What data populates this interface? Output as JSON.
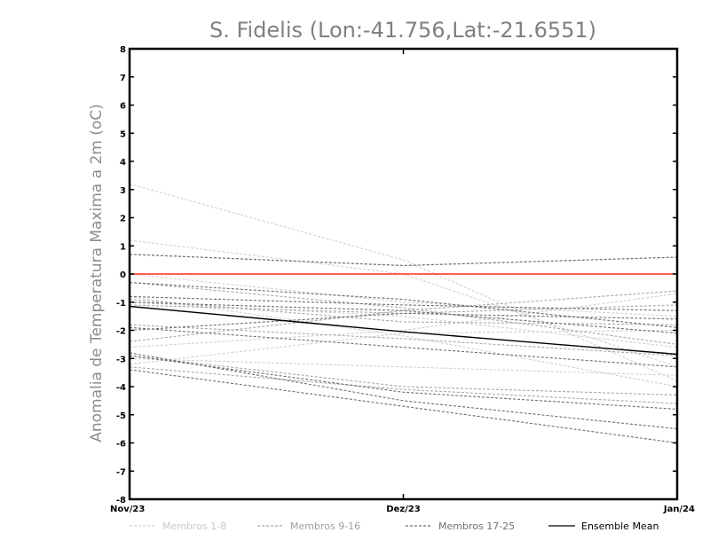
{
  "chart_data": {
    "type": "line",
    "title": "S. Fidelis (Lon:-41.756,Lat:-21.6551)",
    "xlabel": "",
    "ylabel": "Anomalia de Temperatura Maxima a 2m (oC)",
    "categories": [
      "Nov/23",
      "Dez/23",
      "Jan/24"
    ],
    "ylim": [
      -8,
      8
    ],
    "yticks": [
      "8",
      "7",
      "6",
      "5",
      "4",
      "3",
      "2",
      "1",
      "0",
      "-1",
      "-2",
      "-3",
      "-4",
      "-5",
      "-6",
      "-7",
      "-8"
    ],
    "grid": false,
    "legend_position": "bottom",
    "reference_line": {
      "value": 0,
      "color": "#ff2a1a"
    },
    "groups": [
      {
        "legend": "Membros 1-8",
        "color": "#d0d0d0",
        "dash": "3,2"
      },
      {
        "legend": "Membros 9-16",
        "color": "#a8a8a8",
        "dash": "3,2"
      },
      {
        "legend": "Membros 17-25",
        "color": "#6e6e6e",
        "dash": "3,2"
      },
      {
        "legend": "Ensemble Mean",
        "color": "#000000",
        "dash": ""
      }
    ],
    "series": [
      {
        "group": 0,
        "values": [
          3.2,
          0.5,
          -3.8
        ]
      },
      {
        "group": 0,
        "values": [
          1.2,
          0.0,
          -3.3
        ]
      },
      {
        "group": 0,
        "values": [
          0.0,
          -1.0,
          -1.5
        ]
      },
      {
        "group": 0,
        "values": [
          -2.6,
          -2.0,
          -0.7
        ]
      },
      {
        "group": 0,
        "values": [
          -3.0,
          -3.3,
          -3.6
        ]
      },
      {
        "group": 0,
        "values": [
          -3.2,
          -2.1,
          -2.0
        ]
      },
      {
        "group": 0,
        "values": [
          -1.0,
          -1.5,
          -2.6
        ]
      },
      {
        "group": 0,
        "values": [
          -0.8,
          -2.2,
          -4.0
        ]
      },
      {
        "group": 1,
        "values": [
          0.7,
          0.3,
          0.6
        ]
      },
      {
        "group": 1,
        "values": [
          -0.3,
          -1.2,
          -2.5
        ]
      },
      {
        "group": 1,
        "values": [
          -1.1,
          -1.4,
          -1.1
        ]
      },
      {
        "group": 1,
        "values": [
          -1.8,
          -2.3,
          -2.9
        ]
      },
      {
        "group": 1,
        "values": [
          -2.4,
          -1.3,
          -0.6
        ]
      },
      {
        "group": 1,
        "values": [
          -2.9,
          -4.0,
          -4.3
        ]
      },
      {
        "group": 1,
        "values": [
          -0.9,
          -1.7,
          -1.8
        ]
      },
      {
        "group": 1,
        "values": [
          -3.3,
          -4.1,
          -4.6
        ]
      },
      {
        "group": 2,
        "values": [
          0.7,
          0.3,
          0.6
        ]
      },
      {
        "group": 2,
        "values": [
          -0.3,
          -0.9,
          -1.9
        ]
      },
      {
        "group": 2,
        "values": [
          -0.8,
          -1.1,
          -1.3
        ]
      },
      {
        "group": 2,
        "values": [
          -1.0,
          -1.3,
          -2.1
        ]
      },
      {
        "group": 2,
        "values": [
          -2.0,
          -1.4,
          -1.6
        ]
      },
      {
        "group": 2,
        "values": [
          -1.9,
          -2.6,
          -3.3
        ]
      },
      {
        "group": 2,
        "values": [
          -2.8,
          -4.5,
          -5.5
        ]
      },
      {
        "group": 2,
        "values": [
          -3.4,
          -4.7,
          -6.0
        ]
      },
      {
        "group": 2,
        "values": [
          -2.9,
          -4.2,
          -4.8
        ]
      },
      {
        "group": 3,
        "values": [
          -1.15,
          -2.05,
          -2.85
        ]
      }
    ]
  }
}
